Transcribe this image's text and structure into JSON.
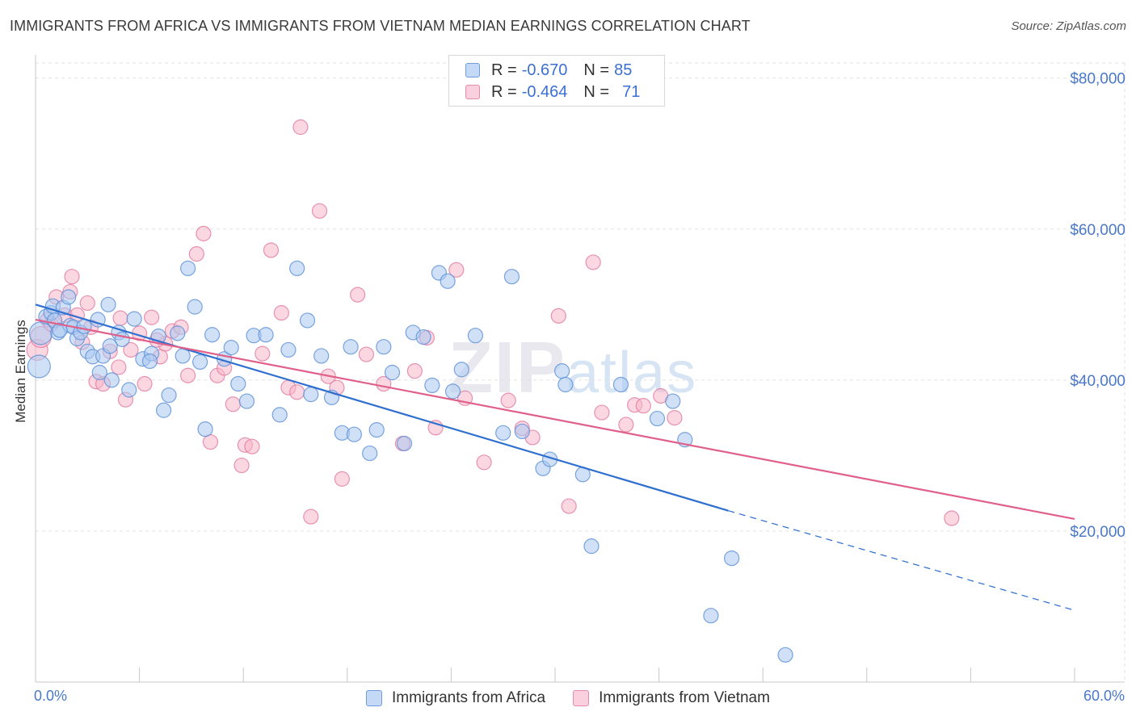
{
  "title": "IMMIGRANTS FROM AFRICA VS IMMIGRANTS FROM VIETNAM MEDIAN EARNINGS CORRELATION CHART",
  "source": "Source: ZipAtlas.com",
  "watermark": {
    "zip": "ZIP",
    "atlas": "atlas"
  },
  "legend": {
    "rows": [
      {
        "r_label": "R =",
        "r_value": "-0.670",
        "n_label": "N =",
        "n_value": "85",
        "color": "#a9c8f0"
      },
      {
        "r_label": "R =",
        "r_value": "-0.464",
        "n_label": "N =",
        "n_value": "71",
        "color": "#f7b6cb"
      }
    ]
  },
  "bottom_legend": [
    "Immigrants from Africa",
    "Immigrants from Vietnam"
  ],
  "colors": {
    "africa_fill": "#a9c8f0",
    "africa_stroke": "#5b8fd6",
    "africa_line": "#2f6fcf",
    "vietnam_fill": "#f7b6cb",
    "vietnam_stroke": "#e17aa0",
    "vietnam_line": "#e0608a",
    "tick_text": "#4a78c8",
    "grid": "#e2e2e2"
  },
  "chart_data": {
    "type": "scatter",
    "title": "IMMIGRANTS FROM AFRICA VS IMMIGRANTS FROM VIETNAM MEDIAN EARNINGS CORRELATION CHART",
    "xlabel": "",
    "ylabel": "Median Earnings",
    "xlim": [
      0,
      60
    ],
    "ylim": [
      0,
      82000
    ],
    "x_tick_labels": [
      "0.0%",
      "60.0%"
    ],
    "y_ticks": [
      20000,
      40000,
      60000,
      80000
    ],
    "y_tick_labels": [
      "$20,000",
      "$40,000",
      "$60,000",
      "$80,000"
    ],
    "grid": true,
    "legend_placement": "top-center",
    "series": [
      {
        "name": "Immigrants from Africa",
        "points": [
          [
            0.2,
            41800
          ],
          [
            0.3,
            46200
          ],
          [
            0.6,
            48400
          ],
          [
            0.9,
            48900
          ],
          [
            1.0,
            49800
          ],
          [
            1.1,
            47900
          ],
          [
            1.3,
            46300
          ],
          [
            1.6,
            49600
          ],
          [
            1.9,
            51000
          ],
          [
            2.0,
            47200
          ],
          [
            2.2,
            47000
          ],
          [
            2.4,
            45500
          ],
          [
            2.6,
            46300
          ],
          [
            2.8,
            47100
          ],
          [
            3.0,
            43800
          ],
          [
            3.3,
            43100
          ],
          [
            3.7,
            41000
          ],
          [
            3.9,
            43200
          ],
          [
            4.2,
            50000
          ],
          [
            4.4,
            40000
          ],
          [
            4.8,
            46300
          ],
          [
            5.0,
            45400
          ],
          [
            5.4,
            38700
          ],
          [
            5.7,
            48100
          ],
          [
            6.2,
            42800
          ],
          [
            6.7,
            43500
          ],
          [
            7.1,
            45800
          ],
          [
            7.4,
            36000
          ],
          [
            7.7,
            38000
          ],
          [
            8.2,
            46200
          ],
          [
            8.5,
            43200
          ],
          [
            8.8,
            54800
          ],
          [
            9.2,
            49700
          ],
          [
            9.5,
            42400
          ],
          [
            9.8,
            33500
          ],
          [
            10.2,
            46000
          ],
          [
            10.9,
            42800
          ],
          [
            11.3,
            44300
          ],
          [
            11.7,
            39500
          ],
          [
            12.2,
            37200
          ],
          [
            12.6,
            45900
          ],
          [
            13.3,
            46000
          ],
          [
            14.1,
            35400
          ],
          [
            14.6,
            44000
          ],
          [
            15.1,
            54800
          ],
          [
            15.7,
            47900
          ],
          [
            15.9,
            38100
          ],
          [
            16.5,
            43200
          ],
          [
            17.1,
            37700
          ],
          [
            17.7,
            33000
          ],
          [
            18.2,
            44400
          ],
          [
            18.4,
            32800
          ],
          [
            19.3,
            30300
          ],
          [
            19.7,
            33400
          ],
          [
            20.1,
            44400
          ],
          [
            20.6,
            41000
          ],
          [
            21.3,
            31600
          ],
          [
            21.8,
            46300
          ],
          [
            22.4,
            45700
          ],
          [
            22.9,
            39300
          ],
          [
            23.3,
            54200
          ],
          [
            23.8,
            53100
          ],
          [
            24.1,
            38500
          ],
          [
            24.6,
            41400
          ],
          [
            25.4,
            45900
          ],
          [
            27.0,
            33000
          ],
          [
            27.5,
            53700
          ],
          [
            28.1,
            33200
          ],
          [
            29.3,
            28300
          ],
          [
            29.7,
            29500
          ],
          [
            30.4,
            41200
          ],
          [
            30.6,
            39400
          ],
          [
            31.6,
            27500
          ],
          [
            32.1,
            18000
          ],
          [
            33.8,
            39400
          ],
          [
            35.9,
            34900
          ],
          [
            36.8,
            37200
          ],
          [
            37.5,
            32100
          ],
          [
            39.0,
            8800
          ],
          [
            40.2,
            16400
          ],
          [
            43.3,
            3600
          ],
          [
            1.4,
            46600
          ],
          [
            3.6,
            48000
          ],
          [
            6.6,
            42500
          ],
          [
            4.3,
            44500
          ]
        ],
        "trend": {
          "x0": 0,
          "y0": 50000,
          "x1": 40.0,
          "y1": 22700,
          "dashed_to_x": 60,
          "dashed_to_y": 9500
        }
      },
      {
        "name": "Immigrants from Vietnam",
        "points": [
          [
            0.1,
            44000
          ],
          [
            0.3,
            45700
          ],
          [
            0.7,
            48000
          ],
          [
            0.9,
            47400
          ],
          [
            1.2,
            51000
          ],
          [
            1.7,
            48600
          ],
          [
            2.0,
            51700
          ],
          [
            2.1,
            53700
          ],
          [
            2.4,
            48600
          ],
          [
            2.7,
            45000
          ],
          [
            3.0,
            50200
          ],
          [
            3.2,
            47000
          ],
          [
            3.5,
            39800
          ],
          [
            3.9,
            39500
          ],
          [
            4.3,
            43800
          ],
          [
            4.9,
            48200
          ],
          [
            5.2,
            37400
          ],
          [
            5.5,
            44000
          ],
          [
            6.0,
            46200
          ],
          [
            6.3,
            39500
          ],
          [
            6.7,
            48300
          ],
          [
            7.2,
            43100
          ],
          [
            7.5,
            44800
          ],
          [
            7.9,
            46500
          ],
          [
            8.4,
            47000
          ],
          [
            8.8,
            40600
          ],
          [
            9.3,
            56700
          ],
          [
            9.7,
            59400
          ],
          [
            10.1,
            31800
          ],
          [
            10.5,
            40600
          ],
          [
            10.9,
            41600
          ],
          [
            11.4,
            36800
          ],
          [
            12.1,
            31400
          ],
          [
            12.5,
            31200
          ],
          [
            13.1,
            43500
          ],
          [
            13.6,
            57200
          ],
          [
            14.2,
            48900
          ],
          [
            14.6,
            39000
          ],
          [
            15.1,
            38400
          ],
          [
            15.9,
            21900
          ],
          [
            16.4,
            62400
          ],
          [
            16.9,
            40500
          ],
          [
            17.4,
            39000
          ],
          [
            17.7,
            26900
          ],
          [
            18.6,
            51300
          ],
          [
            19.1,
            43400
          ],
          [
            20.1,
            39500
          ],
          [
            21.2,
            31600
          ],
          [
            21.9,
            41200
          ],
          [
            22.6,
            45600
          ],
          [
            23.1,
            33700
          ],
          [
            24.3,
            54600
          ],
          [
            24.8,
            37600
          ],
          [
            25.9,
            29100
          ],
          [
            27.3,
            37300
          ],
          [
            28.1,
            33600
          ],
          [
            28.7,
            32400
          ],
          [
            30.2,
            48500
          ],
          [
            30.8,
            23300
          ],
          [
            32.2,
            55600
          ],
          [
            32.7,
            35700
          ],
          [
            34.1,
            34100
          ],
          [
            34.6,
            36700
          ],
          [
            35.1,
            36600
          ],
          [
            36.1,
            37900
          ],
          [
            36.9,
            35000
          ],
          [
            52.9,
            21700
          ],
          [
            4.8,
            41700
          ],
          [
            7.0,
            45300
          ],
          [
            11.9,
            28700
          ],
          [
            15.3,
            73500
          ]
        ],
        "trend": {
          "x0": 0,
          "y0": 48000,
          "x1": 60,
          "y1": 21600
        }
      }
    ]
  }
}
